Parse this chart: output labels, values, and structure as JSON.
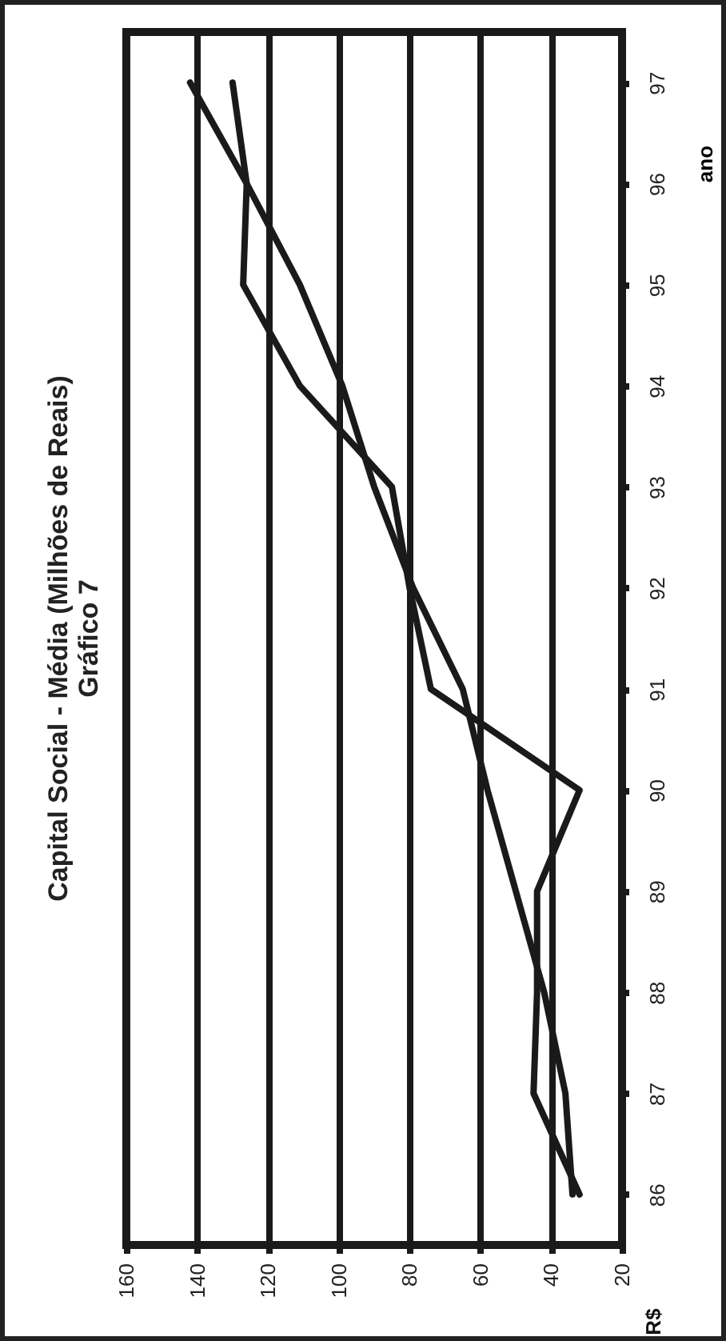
{
  "chart_data": {
    "type": "line",
    "orientation": "horizontal",
    "title": "Capital Social - Média (Milhões de Reais)",
    "subtitle": "Gráfico 7",
    "ylabel": "ano",
    "annotations": [
      "R$"
    ],
    "categories": [
      "97",
      "96",
      "95",
      "94",
      "93",
      "92",
      "91",
      "90",
      "89",
      "88",
      "87",
      "86"
    ],
    "series": [
      {
        "color": "#1a1a1a",
        "values": [
          130,
          126,
          127,
          111,
          85,
          80,
          74,
          32,
          44,
          44,
          45,
          32
        ]
      },
      {
        "color": "#1a1a1a",
        "values": [
          142,
          126,
          111,
          99,
          90,
          79,
          65,
          58,
          50,
          42,
          36,
          34
        ]
      }
    ],
    "xlim": [
      160,
      20
    ],
    "xticks": [
      160,
      140,
      120,
      100,
      80,
      60,
      40,
      20
    ],
    "grid": "x",
    "marker": "none",
    "line_style": "solid"
  }
}
